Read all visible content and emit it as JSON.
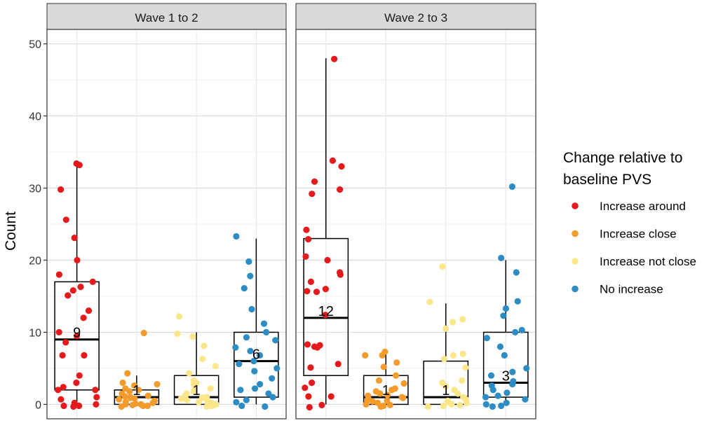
{
  "chart_data": {
    "type": "boxplot",
    "ylabel": "Count",
    "xlabel": "",
    "ylim": [
      -2,
      52
    ],
    "yticks": [
      0,
      10,
      20,
      30,
      40,
      50
    ],
    "grid": true,
    "legend": {
      "title_lines": [
        "Change relative to",
        "baseline PVS"
      ],
      "placement": "right",
      "entries": [
        {
          "name": "Increase around",
          "color": "#e41a1c"
        },
        {
          "name": "Increase close",
          "color": "#f39c2d"
        },
        {
          "name": "Increase not close",
          "color": "#fbe68a"
        },
        {
          "name": "No increase",
          "color": "#2d8cc4"
        }
      ]
    },
    "panels": [
      {
        "title": "Wave 1 to 2",
        "groups": [
          {
            "category": "Increase around",
            "stats": {
              "min": 0,
              "q1": 2,
              "median": 9,
              "q3": 17,
              "max": 33
            },
            "median_label": "9",
            "points": [
              33.4,
              33.2,
              29.8,
              25.6,
              23.1,
              20.0,
              18.0,
              17.0,
              16.3,
              15.8,
              15.1,
              13.0,
              12.0,
              10.0,
              9.5,
              8.6,
              6.8,
              6.8,
              4.0,
              3.0,
              2.4,
              2.0,
              2.0,
              1.0,
              0.7,
              0.2,
              0.0,
              -0.2,
              -0.3,
              -0.2
            ]
          },
          {
            "category": "Increase close",
            "stats": {
              "min": 0,
              "q1": 0,
              "median": 1,
              "q3": 2,
              "max": 4
            },
            "median_label": "1",
            "points": [
              9.9,
              4.3,
              3.0,
              2.8,
              2.6,
              2.2,
              2.0,
              1.8,
              1.5,
              1.2,
              1.0,
              0.9,
              0.7,
              0.5,
              0.3,
              0.2,
              0.1,
              0.0,
              0.0,
              -0.1,
              -0.2,
              -0.2,
              -0.3,
              1.1,
              0.8
            ]
          },
          {
            "category": "Increase not close",
            "stats": {
              "min": 0,
              "q1": 0,
              "median": 1,
              "q3": 4,
              "max": 10
            },
            "median_label": "1",
            "points": [
              12.2,
              9.8,
              9.4,
              8.1,
              6.3,
              5.3,
              4.3,
              3.3,
              3.0,
              2.8,
              2.2,
              2.0,
              1.8,
              1.5,
              1.2,
              1.0,
              0.8,
              0.6,
              0.4,
              0.2,
              0.0,
              -0.1,
              -0.2,
              -0.3,
              0.9,
              0.3
            ]
          },
          {
            "category": "No increase",
            "stats": {
              "min": 0,
              "q1": 1,
              "median": 6,
              "q3": 10,
              "max": 23
            },
            "median_label": "6",
            "points": [
              23.3,
              19.8,
              17.8,
              16.1,
              13.2,
              11.2,
              10.0,
              9.3,
              8.9,
              7.9,
              7.4,
              6.8,
              6.0,
              5.6,
              5.0,
              4.6,
              3.6,
              2.8,
              2.2,
              2.0,
              1.5,
              1.0,
              0.6,
              0.3,
              -0.2,
              -0.3
            ]
          }
        ]
      },
      {
        "title": "Wave 2 to 3",
        "groups": [
          {
            "category": "Increase around",
            "stats": {
              "min": 0,
              "q1": 4,
              "median": 12,
              "q3": 23,
              "max": 48
            },
            "median_label": "12",
            "points": [
              47.9,
              33.8,
              33.0,
              30.9,
              29.8,
              29.2,
              24.2,
              22.9,
              20.5,
              20.0,
              18.3,
              18.0,
              17.0,
              16.0,
              15.7,
              15.6,
              12.4,
              8.3,
              8.2,
              8.0,
              7.9,
              5.6,
              5.1,
              3.0,
              2.3,
              1.1,
              1.1,
              -0.1,
              -0.4
            ]
          },
          {
            "category": "Increase close",
            "stats": {
              "min": 0,
              "q1": 0,
              "median": 1,
              "q3": 4,
              "max": 7
            },
            "median_label": "1",
            "points": [
              7.3,
              6.8,
              6.8,
              5.8,
              5.2,
              4.0,
              3.3,
              2.9,
              2.2,
              2.0,
              1.8,
              1.5,
              1.2,
              1.0,
              0.8,
              0.6,
              0.4,
              0.2,
              0.0,
              -0.1,
              -0.2,
              -0.3,
              1.3,
              0.9,
              0.5
            ]
          },
          {
            "category": "Increase not close",
            "stats": {
              "min": 0,
              "q1": 0,
              "median": 1,
              "q3": 6,
              "max": 14
            },
            "median_label": "1",
            "points": [
              19.1,
              14.2,
              11.8,
              11.4,
              10.5,
              7.0,
              6.8,
              6.3,
              5.1,
              3.3,
              3.0,
              2.5,
              2.0,
              1.5,
              1.0,
              0.5,
              0.2,
              0.0,
              -0.1,
              -0.2,
              -0.3,
              0.7,
              0.3
            ]
          },
          {
            "category": "No increase",
            "stats": {
              "min": 0,
              "q1": 1,
              "median": 3,
              "q3": 10,
              "max": 20
            },
            "median_label": "3",
            "points": [
              30.2,
              20.3,
              18.3,
              14.3,
              13.3,
              12.3,
              10.3,
              10.0,
              9.2,
              8.0,
              6.8,
              5.0,
              4.5,
              4.0,
              3.2,
              2.6,
              2.0,
              1.6,
              1.2,
              1.0,
              0.7,
              0.2,
              0.0,
              -0.2,
              -0.3,
              2.8
            ]
          }
        ]
      }
    ]
  }
}
